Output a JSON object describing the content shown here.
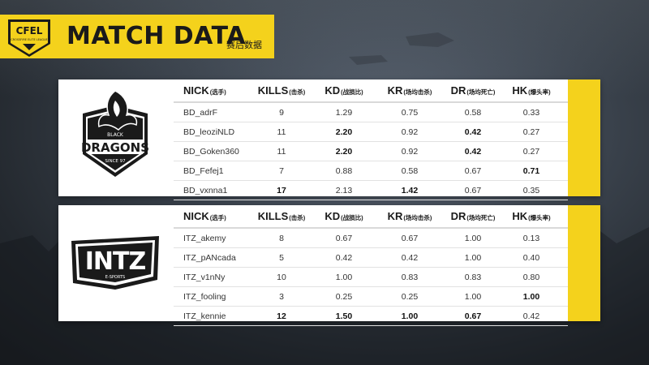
{
  "header": {
    "logo_text": "CFEL",
    "logo_subtext": "CROSSFIRE ELITE LEAGUE",
    "title": "MATCH DATA",
    "subtitle": "赛后数据"
  },
  "columns": [
    {
      "label": "NICK",
      "sub": "(选手)"
    },
    {
      "label": "KILLS",
      "sub": "(击杀)"
    },
    {
      "label": "KD",
      "sub": "(战损比)"
    },
    {
      "label": "KR",
      "sub": "(场均击杀)"
    },
    {
      "label": "DR",
      "sub": "(场均死亡)"
    },
    {
      "label": "HK",
      "sub": "(爆头率)"
    }
  ],
  "teams": [
    {
      "logo_icon": "black-dragons-logo",
      "logo_text": "BLACK DRAGONS",
      "logo_since": "SINCE 97",
      "players": [
        {
          "nick": "BD_adrF",
          "kills": "9",
          "kd": "1.29",
          "kr": "0.75",
          "dr": "0.58",
          "hk": "0.33",
          "bold": []
        },
        {
          "nick": "BD_leoziNLD",
          "kills": "11",
          "kd": "2.20",
          "kr": "0.92",
          "dr": "0.42",
          "hk": "0.27",
          "bold": [
            "kd",
            "dr"
          ]
        },
        {
          "nick": "BD_Goken360",
          "kills": "11",
          "kd": "2.20",
          "kr": "0.92",
          "dr": "0.42",
          "hk": "0.27",
          "bold": [
            "kd",
            "dr"
          ]
        },
        {
          "nick": "BD_Fefej1",
          "kills": "7",
          "kd": "0.88",
          "kr": "0.58",
          "dr": "0.67",
          "hk": "0.71",
          "bold": [
            "hk"
          ]
        },
        {
          "nick": "BD_vxnna1",
          "kills": "17",
          "kd": "2.13",
          "kr": "1.42",
          "dr": "0.67",
          "hk": "0.35",
          "bold": [
            "kills",
            "kr"
          ]
        }
      ]
    },
    {
      "logo_icon": "intz-logo",
      "logo_text": "INTZ",
      "logo_since": "E-SPORTS",
      "players": [
        {
          "nick": "ITZ_akemy",
          "kills": "8",
          "kd": "0.67",
          "kr": "0.67",
          "dr": "1.00",
          "hk": "0.13",
          "bold": []
        },
        {
          "nick": "ITZ_pANcada",
          "kills": "5",
          "kd": "0.42",
          "kr": "0.42",
          "dr": "1.00",
          "hk": "0.40",
          "bold": []
        },
        {
          "nick": "ITZ_v1nNy",
          "kills": "10",
          "kd": "1.00",
          "kr": "0.83",
          "dr": "0.83",
          "hk": "0.80",
          "bold": []
        },
        {
          "nick": "ITZ_fooling",
          "kills": "3",
          "kd": "0.25",
          "kr": "0.25",
          "dr": "1.00",
          "hk": "1.00",
          "bold": [
            "hk"
          ]
        },
        {
          "nick": "ITZ_kennie",
          "kills": "12",
          "kd": "1.50",
          "kr": "1.00",
          "dr": "0.67",
          "hk": "0.42",
          "bold": [
            "kills",
            "kd",
            "kr",
            "dr"
          ]
        }
      ]
    }
  ],
  "colors": {
    "accent": "#f4d21c",
    "text": "#333333"
  }
}
